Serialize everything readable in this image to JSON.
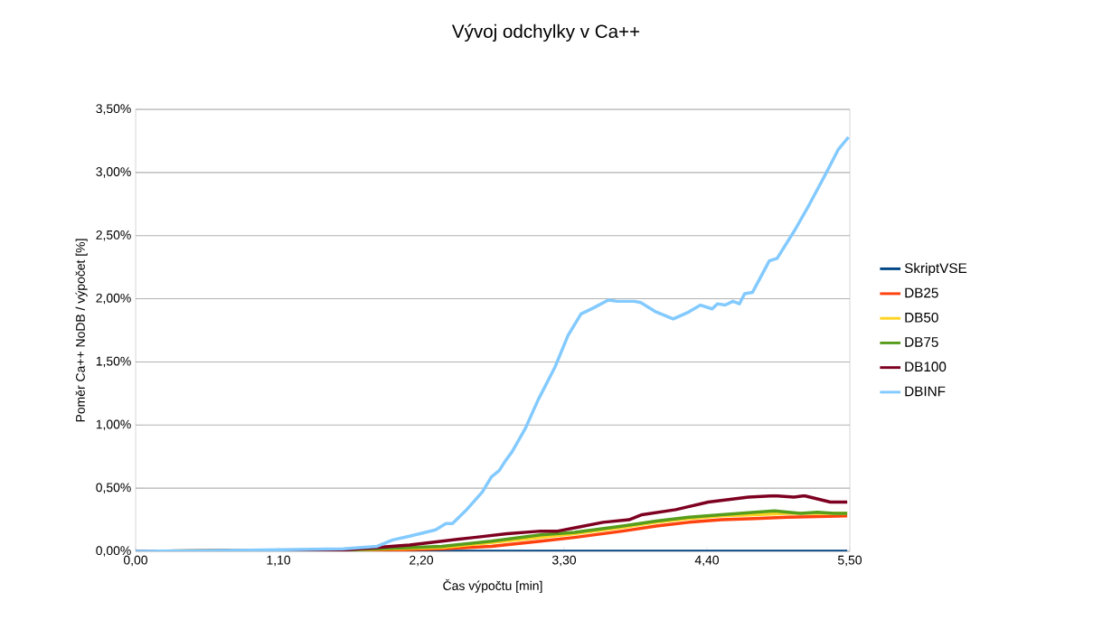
{
  "chart_data": {
    "type": "line",
    "title": "Vývoj odchylky v Ca++",
    "xlabel": "Čas výpočtu [min]",
    "ylabel": "Poměr Ca++ NoDB / výpočet [%]",
    "xlim": [
      0,
      5.5
    ],
    "xticks": [
      {
        "value": 0,
        "label": "0,00"
      },
      {
        "value": 1.1,
        "label": "1,10"
      },
      {
        "value": 2.2,
        "label": "2,20"
      },
      {
        "value": 3.3,
        "label": "3,30"
      },
      {
        "value": 4.4,
        "label": "4,40"
      },
      {
        "value": 5.5,
        "label": "5,50"
      }
    ],
    "ylim": [
      0,
      3.5
    ],
    "yticks": [
      {
        "value": 0,
        "label": "0,00%"
      },
      {
        "value": 0.5,
        "label": "0,50%"
      },
      {
        "value": 1.0,
        "label": "1,00%"
      },
      {
        "value": 1.5,
        "label": "1,50%"
      },
      {
        "value": 2.0,
        "label": "2,00%"
      },
      {
        "value": 2.5,
        "label": "2,50%"
      },
      {
        "value": 3.0,
        "label": "3,00%"
      },
      {
        "value": 3.5,
        "label": "3,50%"
      }
    ],
    "grid": "y",
    "legend": "right",
    "marker": "none",
    "line_style": "solid",
    "series": [
      {
        "name": "SkriptVSE",
        "color": "#004586",
        "x": [
          0,
          5.48
        ],
        "values": [
          0,
          0
        ]
      },
      {
        "name": "DB25",
        "color": "#ff420e",
        "x": [
          0,
          1.6,
          2.36,
          2.74,
          3.12,
          3.38,
          3.75,
          4.01,
          4.26,
          4.51,
          4.77,
          5.02,
          5.48
        ],
        "values": [
          0,
          0,
          0.02,
          0.04,
          0.08,
          0.11,
          0.16,
          0.2,
          0.23,
          0.25,
          0.26,
          0.27,
          0.28
        ]
      },
      {
        "name": "DB50",
        "color": "#ffd320",
        "x": [
          0,
          1.6,
          2.36,
          2.74,
          3.12,
          3.38,
          3.75,
          4.01,
          4.26,
          4.51,
          4.77,
          5.02,
          5.48
        ],
        "values": [
          0,
          0.01,
          0.03,
          0.07,
          0.11,
          0.14,
          0.19,
          0.23,
          0.26,
          0.28,
          0.29,
          0.3,
          0.3
        ]
      },
      {
        "name": "DB75",
        "color": "#579d1c",
        "x": [
          0,
          1.6,
          2.36,
          2.74,
          3.12,
          3.38,
          3.75,
          4.01,
          4.26,
          4.51,
          4.77,
          4.92,
          5.12,
          5.25,
          5.38,
          5.48
        ],
        "values": [
          0,
          0.01,
          0.04,
          0.08,
          0.13,
          0.15,
          0.2,
          0.24,
          0.27,
          0.29,
          0.31,
          0.32,
          0.3,
          0.31,
          0.3,
          0.3
        ]
      },
      {
        "name": "DB100",
        "color": "#7e0021",
        "x": [
          0,
          1.6,
          2.11,
          2.36,
          2.61,
          2.86,
          3.12,
          3.25,
          3.4,
          3.6,
          3.8,
          3.9,
          4.16,
          4.41,
          4.72,
          4.92,
          5.07,
          5.15,
          5.35,
          5.48
        ],
        "values": [
          0,
          0.01,
          0.05,
          0.08,
          0.11,
          0.14,
          0.16,
          0.16,
          0.19,
          0.23,
          0.25,
          0.29,
          0.33,
          0.39,
          0.43,
          0.44,
          0.43,
          0.44,
          0.39,
          0.39
        ]
      },
      {
        "name": "DBINF",
        "color": "#83caff",
        "x": [
          0,
          1.0,
          1.6,
          1.86,
          1.98,
          2.11,
          2.31,
          2.39,
          2.44,
          2.54,
          2.67,
          2.74,
          2.8,
          2.85,
          2.9,
          3.0,
          3.1,
          3.23,
          3.33,
          3.43,
          3.53,
          3.64,
          3.71,
          3.84,
          3.89,
          4.0,
          4.14,
          4.25,
          4.35,
          4.44,
          4.48,
          4.54,
          4.6,
          4.65,
          4.69,
          4.75,
          4.88,
          4.94,
          5.08,
          5.19,
          5.31,
          5.41,
          5.49
        ],
        "values": [
          0,
          0.01,
          0.02,
          0.04,
          0.09,
          0.12,
          0.17,
          0.22,
          0.22,
          0.32,
          0.47,
          0.59,
          0.64,
          0.72,
          0.79,
          0.97,
          1.2,
          1.46,
          1.71,
          1.88,
          1.93,
          1.99,
          1.98,
          1.98,
          1.97,
          1.9,
          1.84,
          1.89,
          1.95,
          1.92,
          1.96,
          1.95,
          1.98,
          1.96,
          2.04,
          2.05,
          2.3,
          2.32,
          2.55,
          2.75,
          2.98,
          3.18,
          3.28
        ]
      }
    ]
  }
}
